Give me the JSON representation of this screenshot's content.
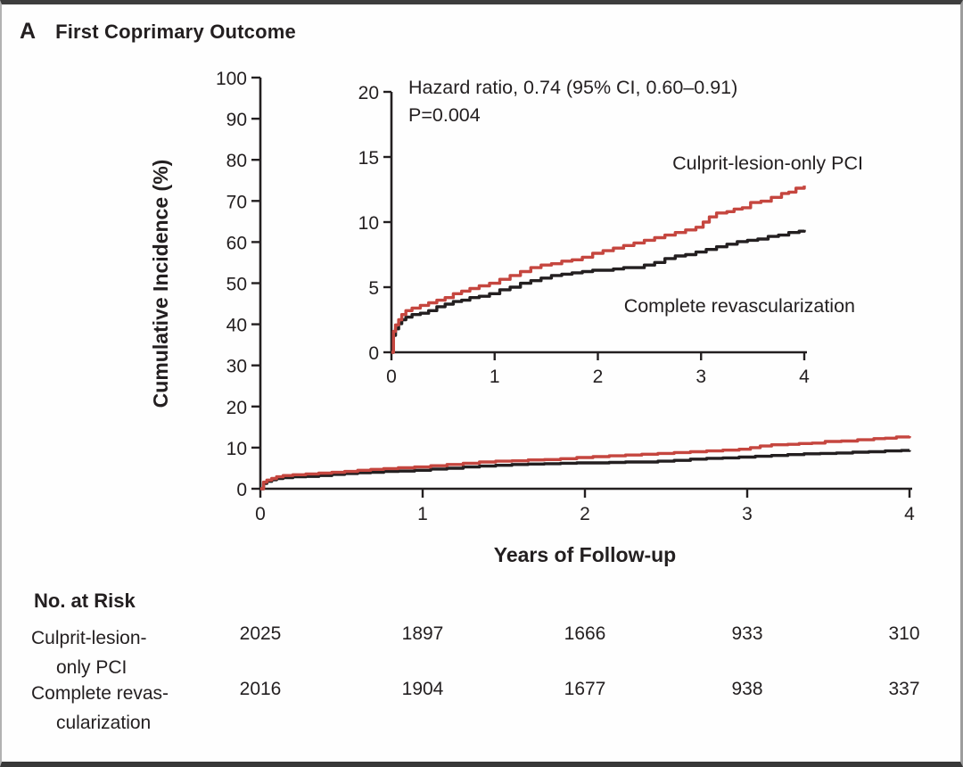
{
  "panel": {
    "letter": "A",
    "title": "First Coprimary Outcome"
  },
  "colors": {
    "culprit": "#c5463f",
    "complete": "#231f20",
    "axis": "#231f20"
  },
  "chart_data": {
    "type": "line",
    "subtype": "kaplan-meier-step",
    "title": "First Coprimary Outcome",
    "xlabel": "Years of Follow-up",
    "ylabel": "Cumulative Incidence (%)",
    "main_axis": {
      "xlim": [
        0,
        4
      ],
      "ylim": [
        0,
        100
      ],
      "xticks": [
        0,
        1,
        2,
        3,
        4
      ],
      "yticks": [
        0,
        10,
        20,
        30,
        40,
        50,
        60,
        70,
        80,
        90,
        100
      ],
      "grid": false
    },
    "inset_axis": {
      "xlim": [
        0,
        4
      ],
      "ylim": [
        0,
        20
      ],
      "xticks": [
        0,
        1,
        2,
        3,
        4
      ],
      "yticks": [
        0,
        5,
        10,
        15,
        20
      ],
      "grid": false
    },
    "annotations": {
      "hazard_ratio": "Hazard ratio, 0.74 (95% CI, 0.60–0.91)",
      "p_value": "P=0.004"
    },
    "legend_position": "inline-labels",
    "series": [
      {
        "name": "Culprit-lesion-only PCI",
        "color": "#c5463f",
        "points": [
          [
            0,
            0
          ],
          [
            0.02,
            1.6
          ],
          [
            0.04,
            2.1
          ],
          [
            0.07,
            2.5
          ],
          [
            0.1,
            2.9
          ],
          [
            0.14,
            3.2
          ],
          [
            0.2,
            3.4
          ],
          [
            0.28,
            3.6
          ],
          [
            0.36,
            3.8
          ],
          [
            0.44,
            4.0
          ],
          [
            0.52,
            4.2
          ],
          [
            0.6,
            4.5
          ],
          [
            0.68,
            4.7
          ],
          [
            0.76,
            4.9
          ],
          [
            0.85,
            5.1
          ],
          [
            0.95,
            5.3
          ],
          [
            1.05,
            5.6
          ],
          [
            1.15,
            5.9
          ],
          [
            1.25,
            6.2
          ],
          [
            1.35,
            6.5
          ],
          [
            1.45,
            6.7
          ],
          [
            1.55,
            6.8
          ],
          [
            1.65,
            7.0
          ],
          [
            1.75,
            7.1
          ],
          [
            1.85,
            7.3
          ],
          [
            1.95,
            7.6
          ],
          [
            2.05,
            7.8
          ],
          [
            2.15,
            8.0
          ],
          [
            2.25,
            8.2
          ],
          [
            2.35,
            8.4
          ],
          [
            2.45,
            8.6
          ],
          [
            2.55,
            8.8
          ],
          [
            2.65,
            9.0
          ],
          [
            2.75,
            9.2
          ],
          [
            2.85,
            9.4
          ],
          [
            2.95,
            9.6
          ],
          [
            3.02,
            10.0
          ],
          [
            3.08,
            10.4
          ],
          [
            3.15,
            10.7
          ],
          [
            3.25,
            10.8
          ],
          [
            3.32,
            11.0
          ],
          [
            3.4,
            11.1
          ],
          [
            3.48,
            11.5
          ],
          [
            3.58,
            11.6
          ],
          [
            3.68,
            11.9
          ],
          [
            3.78,
            12.2
          ],
          [
            3.85,
            12.3
          ],
          [
            3.92,
            12.6
          ],
          [
            4.0,
            12.8
          ]
        ]
      },
      {
        "name": "Complete revascularization",
        "color": "#231f20",
        "points": [
          [
            0,
            0
          ],
          [
            0.02,
            1.3
          ],
          [
            0.04,
            1.8
          ],
          [
            0.07,
            2.2
          ],
          [
            0.1,
            2.5
          ],
          [
            0.14,
            2.7
          ],
          [
            0.2,
            2.9
          ],
          [
            0.28,
            3.0
          ],
          [
            0.36,
            3.2
          ],
          [
            0.44,
            3.5
          ],
          [
            0.52,
            3.7
          ],
          [
            0.6,
            3.9
          ],
          [
            0.68,
            4.0
          ],
          [
            0.76,
            4.2
          ],
          [
            0.85,
            4.3
          ],
          [
            0.95,
            4.5
          ],
          [
            1.05,
            4.8
          ],
          [
            1.15,
            5.0
          ],
          [
            1.25,
            5.3
          ],
          [
            1.35,
            5.5
          ],
          [
            1.45,
            5.7
          ],
          [
            1.55,
            5.9
          ],
          [
            1.65,
            6.0
          ],
          [
            1.75,
            6.1
          ],
          [
            1.85,
            6.2
          ],
          [
            1.95,
            6.3
          ],
          [
            2.05,
            6.3
          ],
          [
            2.15,
            6.4
          ],
          [
            2.25,
            6.5
          ],
          [
            2.35,
            6.5
          ],
          [
            2.45,
            6.7
          ],
          [
            2.55,
            6.9
          ],
          [
            2.65,
            7.2
          ],
          [
            2.75,
            7.4
          ],
          [
            2.85,
            7.5
          ],
          [
            2.95,
            7.7
          ],
          [
            3.05,
            7.9
          ],
          [
            3.15,
            8.1
          ],
          [
            3.25,
            8.3
          ],
          [
            3.35,
            8.5
          ],
          [
            3.45,
            8.6
          ],
          [
            3.55,
            8.7
          ],
          [
            3.65,
            8.9
          ],
          [
            3.75,
            9.0
          ],
          [
            3.85,
            9.2
          ],
          [
            3.95,
            9.3
          ],
          [
            4.0,
            9.4
          ]
        ]
      }
    ]
  },
  "risk_table": {
    "header": "No. at Risk",
    "timepoints": [
      0,
      1,
      2,
      3,
      4
    ],
    "rows": [
      {
        "label_lines": [
          "Culprit-lesion-",
          "only PCI"
        ],
        "counts": [
          "2025",
          "1897",
          "1666",
          "933",
          "310"
        ]
      },
      {
        "label_lines": [
          "Complete revas-",
          "cularization"
        ],
        "counts": [
          "2016",
          "1904",
          "1677",
          "938",
          "337"
        ]
      }
    ]
  }
}
